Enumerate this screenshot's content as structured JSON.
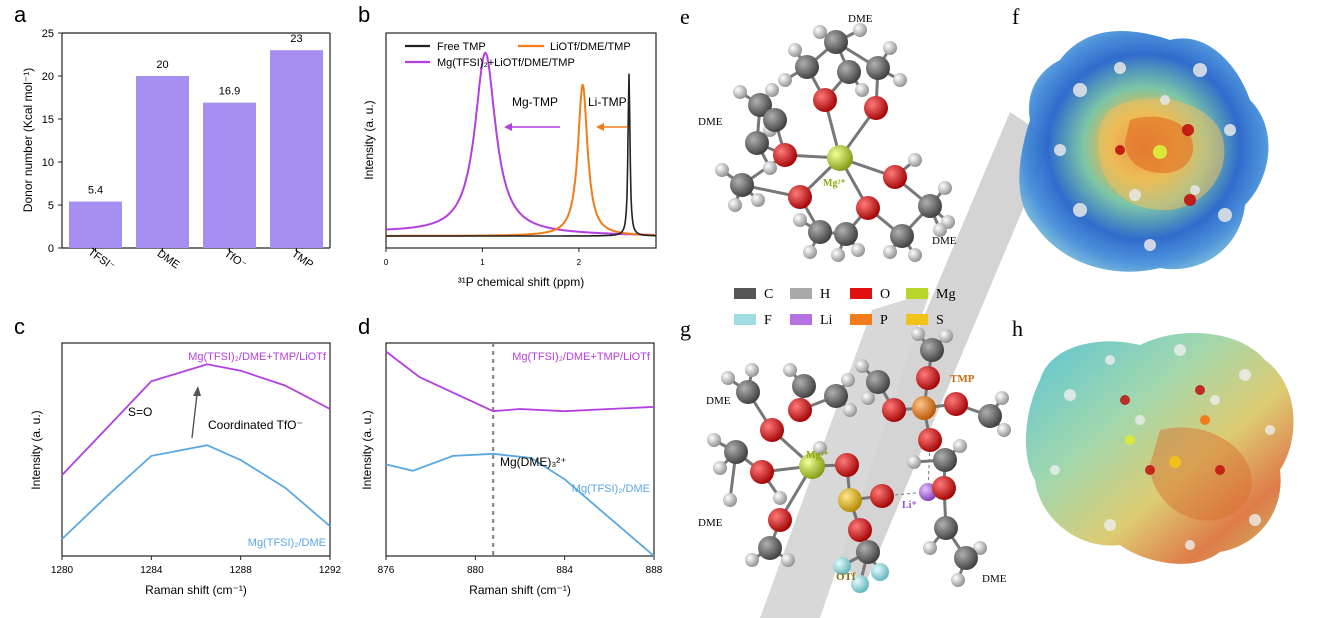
{
  "colors": {
    "bar": "#a68ff0",
    "purple": "#b43fe0",
    "orange": "#f07d1a",
    "blue": "#5aa8e0",
    "black": "#222222",
    "dashed": "#808080"
  },
  "panel_labels": [
    "a",
    "b",
    "c",
    "d",
    "e",
    "f",
    "g",
    "h"
  ],
  "chart_data": [
    {
      "id": "a",
      "type": "bar",
      "categories": [
        "TFSI⁻",
        "DME",
        "TfO⁻",
        "TMP"
      ],
      "values": [
        5.4,
        20,
        16.9,
        23
      ],
      "value_labels": [
        "5.4",
        "20",
        "16.9",
        "23"
      ],
      "ylabel": "Donor number (Kcal mol⁻¹)",
      "ylim": [
        0,
        25
      ],
      "yticks": [
        0,
        5,
        10,
        15,
        20,
        25
      ],
      "ytick_labels": [
        "0",
        "5",
        "10",
        "15",
        "20",
        "25"
      ]
    },
    {
      "id": "b",
      "type": "line",
      "xlabel": "³¹P chemical shift (ppm)",
      "ylabel": "Intensity (a. u.)",
      "xlim": [
        0,
        2.8
      ],
      "xticks": [
        0,
        1,
        2
      ],
      "xtick_labels": [
        "0",
        "1",
        "2"
      ],
      "ylim": [
        0,
        1.1
      ],
      "legend": [
        "Free TMP",
        "LiOTf/DME/TMP",
        "Mg(TFSI)₂+LiOTf/DME/TMP"
      ],
      "annotations": [
        "Mg-TMP",
        "Li-TMP"
      ],
      "series": [
        {
          "name": "Free TMP",
          "color_key": "black",
          "peak": 2.52,
          "width": 0.012,
          "height": 0.88,
          "base": 0.0
        },
        {
          "name": "LiOTf/DME/TMP",
          "color_key": "orange",
          "peak": 2.04,
          "width": 0.06,
          "height": 0.82,
          "base": 0.0
        },
        {
          "name": "Mg(TFSI)₂+LiOTf/DME/TMP",
          "color_key": "purple",
          "peak": 1.03,
          "width": 0.13,
          "height": 0.98,
          "base": 0.02
        }
      ]
    },
    {
      "id": "c",
      "type": "line",
      "xlabel": "Raman shift (cm⁻¹)",
      "ylabel": "Intensity (a. u.)",
      "xlim": [
        1280,
        1292
      ],
      "xticks": [
        1280,
        1284,
        1288,
        1292
      ],
      "xtick_labels": [
        "1280",
        "1284",
        "1288",
        "1292"
      ],
      "ylim": [
        0,
        1
      ],
      "annotations": [
        "S=O",
        "Coordinated TfO⁻"
      ],
      "series": [
        {
          "name": "Mg(TFSI)₂/DME+TMP/LiOTf",
          "color_key": "purple",
          "x": [
            1280,
            1282,
            1284,
            1286.5,
            1288,
            1290,
            1292
          ],
          "y": [
            0.38,
            0.6,
            0.82,
            0.9,
            0.87,
            0.8,
            0.69
          ]
        },
        {
          "name": "Mg(TFSI)₂/DME",
          "color_key": "blue",
          "x": [
            1280,
            1282,
            1284,
            1286.5,
            1288,
            1290,
            1292
          ],
          "y": [
            0.08,
            0.28,
            0.47,
            0.52,
            0.45,
            0.32,
            0.14
          ]
        }
      ]
    },
    {
      "id": "d",
      "type": "line",
      "xlabel": "Raman shift (cm⁻¹)",
      "ylabel": "Intensity (a. u.)",
      "xlim": [
        876,
        888
      ],
      "xticks": [
        876,
        880,
        884,
        888
      ],
      "xtick_labels": [
        "876",
        "880",
        "884",
        "888"
      ],
      "ylim": [
        0,
        1
      ],
      "dashed_x": 880.8,
      "annotations": [
        "Mg(DME)₃²⁺"
      ],
      "series": [
        {
          "name": "Mg(TFSI)₂/DME+TMP/LiOTf",
          "color_key": "purple",
          "x": [
            876,
            877.5,
            880.8,
            882,
            884,
            886,
            888
          ],
          "y": [
            0.96,
            0.84,
            0.68,
            0.69,
            0.68,
            0.69,
            0.7
          ]
        },
        {
          "name": "Mg(TFSI)₂/DME",
          "color_key": "blue",
          "x": [
            876,
            877.2,
            879,
            880.8,
            882.5,
            884,
            886,
            888
          ],
          "y": [
            0.43,
            0.4,
            0.47,
            0.48,
            0.46,
            0.36,
            0.18,
            0.0
          ]
        }
      ]
    }
  ],
  "molecules": {
    "e": {
      "labels": [
        "DME",
        "DME",
        "DME",
        "Mg²⁺"
      ]
    },
    "g": {
      "labels": [
        "DME",
        "DME",
        "TMP",
        "DME",
        "Mg²⁺",
        "Li⁺",
        "OTf"
      ]
    }
  },
  "atom_legend": [
    {
      "symbol": "C",
      "color": "#555555"
    },
    {
      "symbol": "H",
      "color": "#a9a9a9"
    },
    {
      "symbol": "O",
      "color": "#e01010"
    },
    {
      "symbol": "Mg",
      "color": "#b8d62a"
    },
    {
      "symbol": "F",
      "color": "#9fdde2"
    },
    {
      "symbol": "Li",
      "color": "#b672e0"
    },
    {
      "symbol": "P",
      "color": "#f07d1a"
    },
    {
      "symbol": "S",
      "color": "#f2c21b"
    }
  ]
}
